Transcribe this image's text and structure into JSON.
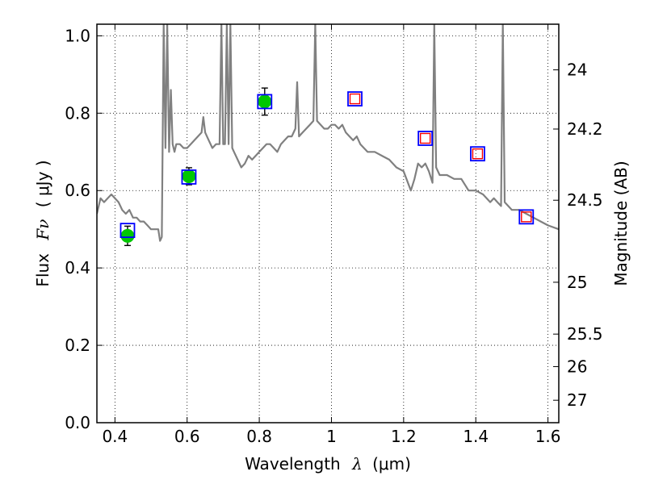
{
  "chart_data": {
    "type": "line",
    "xlabel": "Wavelength",
    "xlabel_symbol": "λ",
    "xlabel_unit": "(μm)",
    "ylabel": "Flux",
    "ylabel_symbol": "Fν",
    "ylabel_unit": "( μJy )",
    "y2label": "Magnitude (AB)",
    "xlim": [
      0.35,
      1.63
    ],
    "ylim": [
      0.0,
      1.03
    ],
    "grid": true,
    "xticks": [
      0.4,
      0.6,
      0.8,
      1.0,
      1.2,
      1.4,
      1.6
    ],
    "xtick_labels": [
      "0.4",
      "0.6",
      "0.8",
      "1",
      "1.2",
      "1.4",
      "1.6"
    ],
    "yticks": [
      0.0,
      0.2,
      0.4,
      0.6,
      0.8,
      1.0
    ],
    "ytick_labels": [
      "0.0",
      "0.2",
      "0.4",
      "0.6",
      "0.8",
      "1.0"
    ],
    "y2ticks": [
      {
        "label": "24",
        "flux": 0.912
      },
      {
        "label": "24.2",
        "flux": 0.759
      },
      {
        "label": "24.5",
        "flux": 0.575
      },
      {
        "label": "25",
        "flux": 0.363
      },
      {
        "label": "25.5",
        "flux": 0.229
      },
      {
        "label": "26",
        "flux": 0.145
      },
      {
        "label": "27",
        "flux": 0.058
      }
    ],
    "series": [
      {
        "role": "sed-model",
        "style": "line",
        "color": "#808080",
        "x": [
          0.35,
          0.36,
          0.37,
          0.38,
          0.39,
          0.4,
          0.41,
          0.42,
          0.43,
          0.44,
          0.45,
          0.46,
          0.47,
          0.48,
          0.49,
          0.5,
          0.51,
          0.52,
          0.525,
          0.53,
          0.535,
          0.54,
          0.545,
          0.55,
          0.555,
          0.56,
          0.565,
          0.57,
          0.58,
          0.59,
          0.6,
          0.61,
          0.62,
          0.63,
          0.64,
          0.645,
          0.65,
          0.66,
          0.67,
          0.68,
          0.69,
          0.695,
          0.7,
          0.705,
          0.71,
          0.715,
          0.72,
          0.725,
          0.73,
          0.74,
          0.75,
          0.76,
          0.77,
          0.78,
          0.79,
          0.8,
          0.81,
          0.82,
          0.83,
          0.84,
          0.85,
          0.86,
          0.87,
          0.88,
          0.89,
          0.9,
          0.905,
          0.91,
          0.92,
          0.93,
          0.94,
          0.95,
          0.955,
          0.96,
          0.97,
          0.98,
          0.99,
          1.0,
          1.01,
          1.02,
          1.03,
          1.04,
          1.05,
          1.06,
          1.07,
          1.08,
          1.09,
          1.1,
          1.12,
          1.14,
          1.16,
          1.18,
          1.2,
          1.22,
          1.23,
          1.24,
          1.25,
          1.26,
          1.27,
          1.28,
          1.285,
          1.29,
          1.3,
          1.32,
          1.34,
          1.36,
          1.38,
          1.4,
          1.42,
          1.44,
          1.45,
          1.46,
          1.47,
          1.475,
          1.48,
          1.49,
          1.5,
          1.52,
          1.54,
          1.56,
          1.58,
          1.6,
          1.63
        ],
        "y": [
          0.54,
          0.58,
          0.57,
          0.58,
          0.59,
          0.58,
          0.57,
          0.55,
          0.54,
          0.55,
          0.53,
          0.53,
          0.52,
          0.52,
          0.51,
          0.5,
          0.5,
          0.5,
          0.47,
          0.48,
          1.03,
          0.71,
          1.03,
          0.7,
          0.86,
          0.72,
          0.7,
          0.72,
          0.72,
          0.71,
          0.71,
          0.72,
          0.73,
          0.74,
          0.75,
          0.79,
          0.75,
          0.73,
          0.71,
          0.72,
          0.72,
          1.03,
          0.72,
          0.72,
          1.03,
          0.72,
          1.03,
          0.71,
          0.7,
          0.68,
          0.66,
          0.67,
          0.69,
          0.68,
          0.69,
          0.7,
          0.71,
          0.72,
          0.72,
          0.71,
          0.7,
          0.72,
          0.73,
          0.74,
          0.74,
          0.76,
          0.88,
          0.74,
          0.75,
          0.76,
          0.77,
          0.78,
          1.03,
          0.78,
          0.77,
          0.76,
          0.76,
          0.77,
          0.77,
          0.76,
          0.77,
          0.75,
          0.74,
          0.73,
          0.74,
          0.72,
          0.71,
          0.7,
          0.7,
          0.69,
          0.68,
          0.66,
          0.65,
          0.6,
          0.63,
          0.67,
          0.66,
          0.67,
          0.65,
          0.62,
          1.03,
          0.66,
          0.64,
          0.64,
          0.63,
          0.63,
          0.6,
          0.6,
          0.59,
          0.57,
          0.58,
          0.57,
          0.56,
          1.03,
          0.57,
          0.56,
          0.55,
          0.55,
          0.54,
          0.53,
          0.52,
          0.51,
          0.5
        ]
      },
      {
        "role": "observed",
        "style": "point",
        "color": "#00c800",
        "x": [
          0.435,
          0.605,
          0.815
        ],
        "y": [
          0.483,
          0.637,
          0.83
        ],
        "yerr": [
          0.025,
          0.022,
          0.035
        ]
      },
      {
        "role": "model-photometry",
        "style": "square",
        "color": "#0000ff",
        "x": [
          0.435,
          0.605,
          0.815,
          1.065,
          1.26,
          1.405,
          1.54
        ],
        "y": [
          0.497,
          0.635,
          0.83,
          0.837,
          0.735,
          0.695,
          0.532
        ]
      },
      {
        "role": "predicted",
        "style": "square",
        "color": "#ff0000",
        "x": [
          1.065,
          1.26,
          1.405,
          1.54
        ],
        "y": [
          0.837,
          0.735,
          0.695,
          0.532
        ]
      }
    ]
  }
}
